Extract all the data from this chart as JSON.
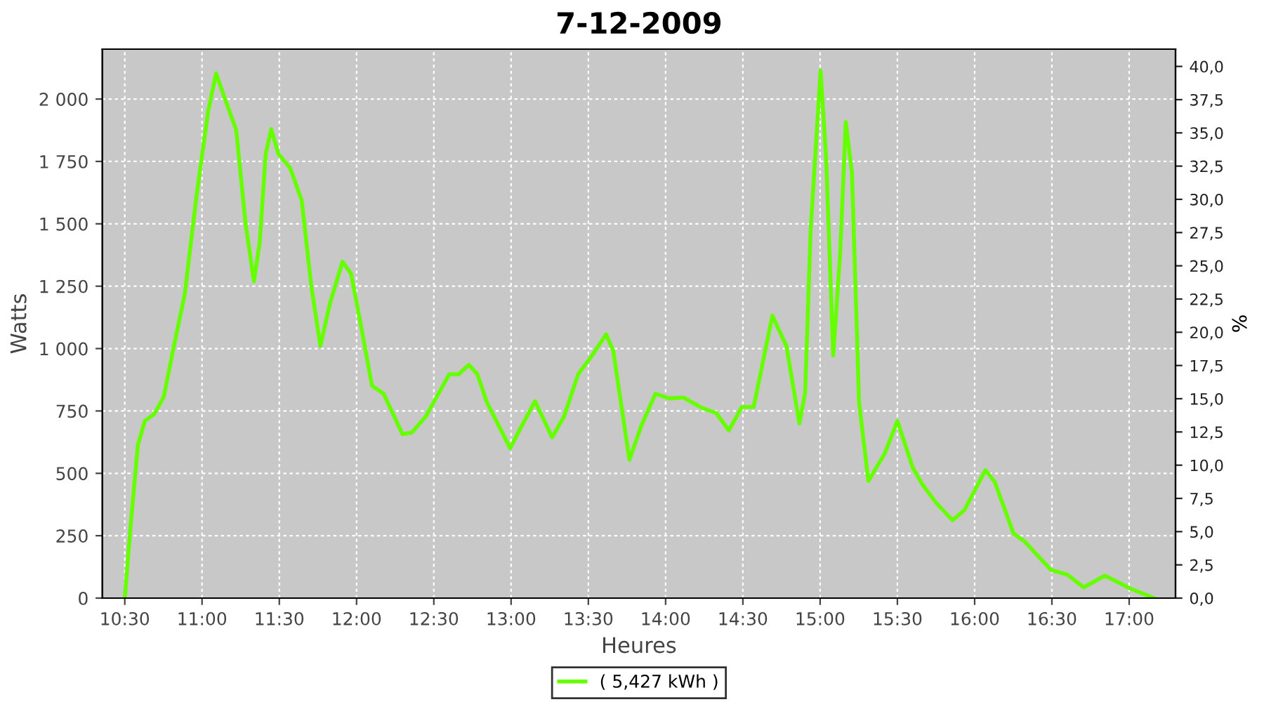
{
  "chart_data": {
    "type": "line",
    "title": "7-12-2009",
    "xlabel": "Heures",
    "ylabel": "Watts",
    "y2label": "%",
    "xlim": [
      10.355,
      17.3
    ],
    "xticks": [
      {
        "value": 10.5,
        "label": "10:30"
      },
      {
        "value": 11,
        "label": "11:00"
      },
      {
        "value": 11.5,
        "label": "11:30"
      },
      {
        "value": 12,
        "label": "12:00"
      },
      {
        "value": 12.5,
        "label": "12:30"
      },
      {
        "value": 13,
        "label": "13:00"
      },
      {
        "value": 13.5,
        "label": "13:30"
      },
      {
        "value": 14,
        "label": "14:00"
      },
      {
        "value": 14.5,
        "label": "14:30"
      },
      {
        "value": 15,
        "label": "15:00"
      },
      {
        "value": 15.5,
        "label": "15:30"
      },
      {
        "value": 16,
        "label": "16:00"
      },
      {
        "value": 16.5,
        "label": "16:30"
      },
      {
        "value": 17,
        "label": "17:00"
      }
    ],
    "ylim": [
      0,
      2200
    ],
    "yticks": [
      0,
      250,
      500,
      750,
      {
        "value": 1000,
        "label": "1 000"
      },
      {
        "value": 1250,
        "label": "1 250"
      },
      {
        "value": 1500,
        "label": "1 500"
      },
      {
        "value": 1750,
        "label": "1 750"
      },
      {
        "value": 2000,
        "label": "2 000"
      }
    ],
    "y2lim": [
      0,
      41.3
    ],
    "y2ticks": [
      {
        "value": 0,
        "label": "0,0"
      },
      {
        "value": 2.5,
        "label": "2,5"
      },
      {
        "value": 5,
        "label": "5,0"
      },
      {
        "value": 7.5,
        "label": "7,5"
      },
      {
        "value": 10,
        "label": "10,0"
      },
      {
        "value": 12.5,
        "label": "12,5"
      },
      {
        "value": 15,
        "label": "15,0"
      },
      {
        "value": 17.5,
        "label": "17,5"
      },
      {
        "value": 20,
        "label": "20,0"
      },
      {
        "value": 22.5,
        "label": "22,5"
      },
      {
        "value": 25,
        "label": "25,0"
      },
      {
        "value": 27.5,
        "label": "27,5"
      },
      {
        "value": 30,
        "label": "30,0"
      },
      {
        "value": 32.5,
        "label": "32,5"
      },
      {
        "value": 35,
        "label": "35,0"
      },
      {
        "value": 37.5,
        "label": "37,5"
      },
      {
        "value": 40,
        "label": "40,0"
      }
    ],
    "grid": true,
    "legend": "bottom",
    "marker": "none",
    "line_style": "solid",
    "series": [
      {
        "name": "( 5,427 kWh )",
        "color": "#66ff00",
        "x": [
          10.5,
          10.539,
          10.585,
          10.63,
          10.691,
          10.752,
          10.812,
          10.888,
          10.964,
          11.039,
          11.091,
          11.145,
          11.221,
          11.282,
          11.336,
          11.373,
          11.412,
          11.448,
          11.494,
          11.57,
          11.645,
          11.706,
          11.766,
          11.827,
          11.909,
          11.964,
          12.025,
          12.1,
          12.175,
          12.297,
          12.357,
          12.448,
          12.6,
          12.661,
          12.727,
          12.782,
          12.843,
          12.994,
          13.07,
          13.155,
          13.266,
          13.343,
          13.434,
          13.525,
          13.615,
          13.661,
          13.766,
          13.843,
          13.934,
          14.025,
          14.115,
          14.236,
          14.327,
          14.409,
          14.494,
          14.57,
          14.691,
          14.782,
          14.866,
          14.903,
          14.939,
          15.003,
          15.039,
          15.085,
          15.13,
          15.166,
          15.206,
          15.252,
          15.312,
          15.418,
          15.5,
          15.6,
          15.661,
          15.752,
          15.857,
          15.934,
          16.07,
          16.13,
          16.252,
          16.327,
          16.494,
          16.6,
          16.706,
          16.843,
          17.009,
          17.161
        ],
        "values": [
          0,
          299,
          614,
          710,
          738,
          806,
          992,
          1217,
          1611,
          1949,
          2103,
          2006,
          1876,
          1499,
          1269,
          1425,
          1780,
          1880,
          1780,
          1724,
          1594,
          1256,
          1010,
          1179,
          1348,
          1301,
          1104,
          851,
          819,
          657,
          663,
          728,
          897,
          897,
          935,
          897,
          785,
          601,
          691,
          789,
          644,
          728,
          897,
          973,
          1057,
          992,
          554,
          691,
          819,
          800,
          804,
          762,
          742,
          672,
          766,
          766,
          1132,
          1010,
          700,
          823,
          1480,
          2114,
          1762,
          973,
          1386,
          1908,
          1705,
          785,
          469,
          579,
          710,
          522,
          456,
          381,
          312,
          353,
          513,
          466,
          259,
          225,
          113,
          94,
          43,
          90,
          38,
          0
        ]
      }
    ]
  }
}
